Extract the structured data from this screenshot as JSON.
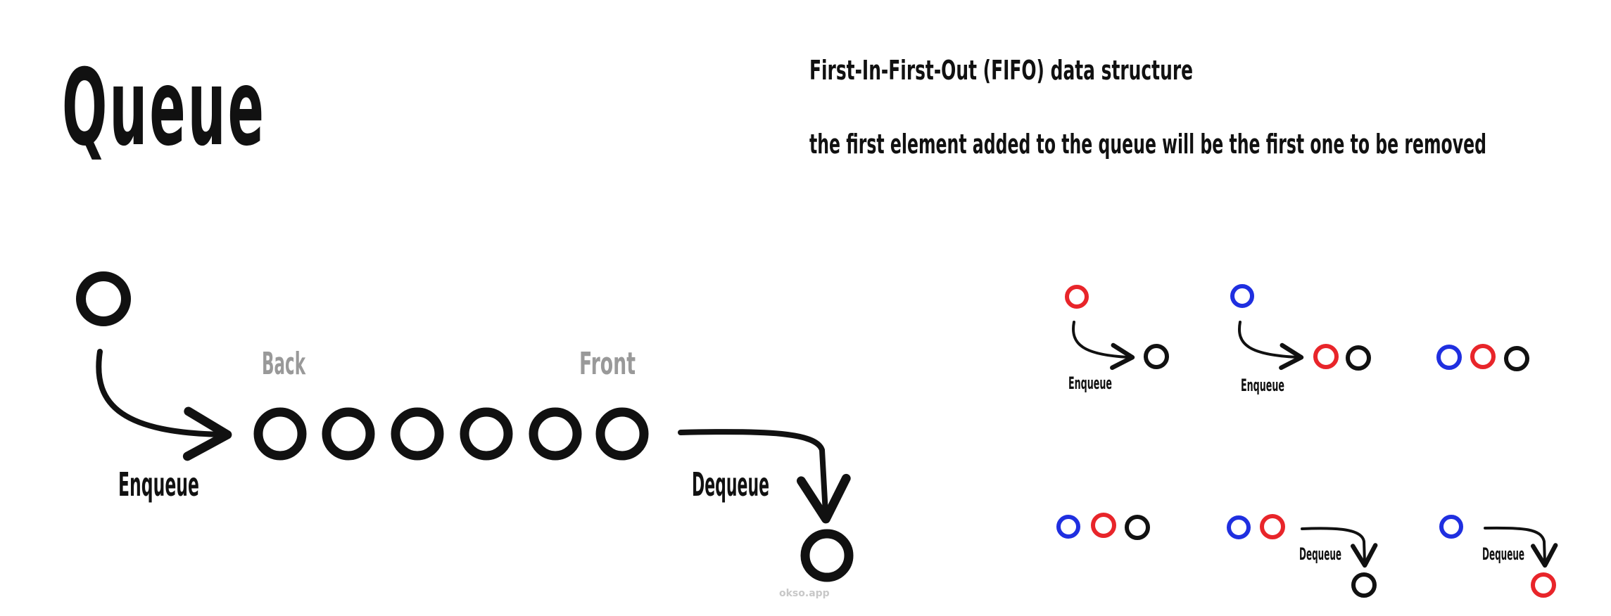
{
  "title": "Queue",
  "description": {
    "line1": "First-In-First-Out (FIFO) data structure",
    "line2": "the first element added to the queue will be the first one to be removed"
  },
  "main_diagram": {
    "back_label": "Back",
    "front_label": "Front",
    "enqueue_label": "Enqueue",
    "dequeue_label": "Dequeue",
    "queue_item_count": 6,
    "watermark": "okso.app"
  },
  "examples": {
    "step1_label": "Enqueue",
    "step2_label": "Enqueue",
    "step4_label": "Dequeue",
    "step5_label": "Dequeue"
  },
  "colors": {
    "ink": "#111111",
    "muted": "#999999",
    "red": "#e8252a",
    "blue": "#1f2fe0",
    "watermark": "#c8c8c8"
  }
}
